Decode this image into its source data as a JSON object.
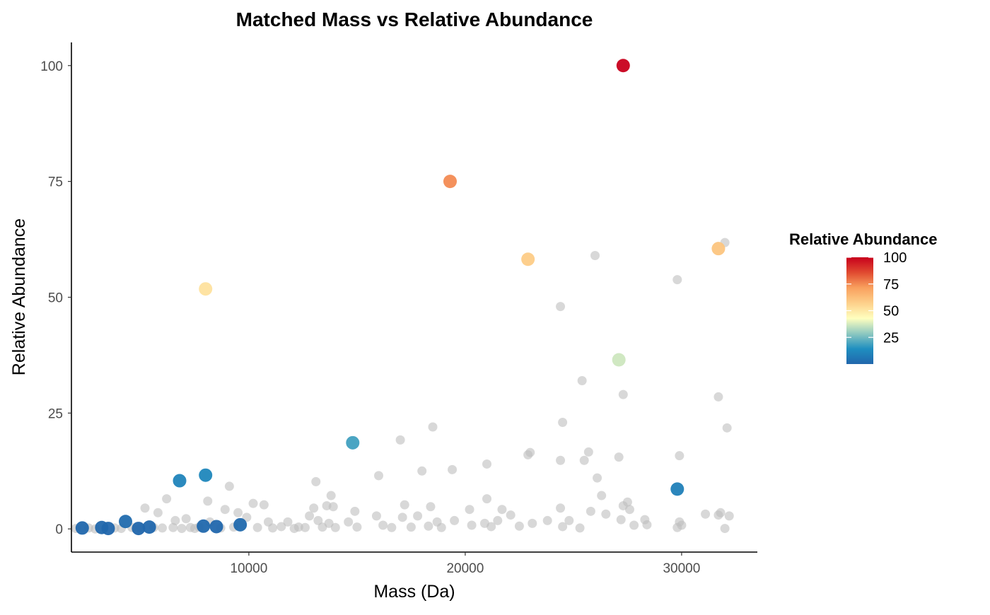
{
  "chart_data": {
    "type": "scatter",
    "title": "Matched Mass vs Relative Abundance",
    "xlabel": "Mass (Da)",
    "ylabel": "Relative Abundance",
    "xlim": [
      1800,
      33500
    ],
    "ylim": [
      -5,
      105
    ],
    "x_ticks": [
      10000,
      20000,
      30000
    ],
    "x_tick_labels": [
      "10000",
      "20000",
      "30000"
    ],
    "y_ticks": [
      0,
      25,
      50,
      75,
      100
    ],
    "y_tick_labels": [
      "0",
      "25",
      "50",
      "75",
      "100"
    ],
    "grid": false,
    "legend": {
      "title": "Relative Abundance",
      "placement": "right",
      "type": "colorbar",
      "range": [
        0,
        100
      ],
      "ticks": [
        25,
        50,
        75,
        100
      ],
      "tick_labels": [
        "25",
        "50",
        "75",
        "100"
      ],
      "colors": [
        "#2166AC",
        "#1F8FC0",
        "#8EC8C0",
        "#FFFFBF",
        "#FDD08A",
        "#F9A05E",
        "#E04A30",
        "#C8001C"
      ]
    },
    "series": [
      {
        "role": "matched",
        "colored_by": "Relative Abundance",
        "points": [
          {
            "x": 2300,
            "y": 0.2
          },
          {
            "x": 3200,
            "y": 0.3
          },
          {
            "x": 3500,
            "y": 0.1
          },
          {
            "x": 4300,
            "y": 1.6
          },
          {
            "x": 4900,
            "y": 0.1
          },
          {
            "x": 5400,
            "y": 0.4
          },
          {
            "x": 6800,
            "y": 10.4
          },
          {
            "x": 7900,
            "y": 0.6
          },
          {
            "x": 8000,
            "y": 11.6
          },
          {
            "x": 8000,
            "y": 51.8
          },
          {
            "x": 8500,
            "y": 0.5
          },
          {
            "x": 9600,
            "y": 0.9
          },
          {
            "x": 14800,
            "y": 18.6
          },
          {
            "x": 19300,
            "y": 75.0
          },
          {
            "x": 22900,
            "y": 58.2
          },
          {
            "x": 27100,
            "y": 36.5
          },
          {
            "x": 27300,
            "y": 100.0
          },
          {
            "x": 29800,
            "y": 8.6
          },
          {
            "x": 31700,
            "y": 60.5
          }
        ]
      },
      {
        "role": "unmatched",
        "color": "#BEBEBE",
        "points": [
          {
            "x": 2000,
            "y": 0.1
          },
          {
            "x": 2600,
            "y": 0.2
          },
          {
            "x": 2900,
            "y": 0.0
          },
          {
            "x": 3800,
            "y": 0.2
          },
          {
            "x": 4100,
            "y": 0.1
          },
          {
            "x": 4600,
            "y": 0.3
          },
          {
            "x": 5000,
            "y": 0.2
          },
          {
            "x": 5200,
            "y": 4.5
          },
          {
            "x": 5600,
            "y": 0.3
          },
          {
            "x": 5800,
            "y": 3.5
          },
          {
            "x": 6000,
            "y": 0.2
          },
          {
            "x": 6200,
            "y": 6.5
          },
          {
            "x": 6500,
            "y": 0.3
          },
          {
            "x": 6600,
            "y": 1.8
          },
          {
            "x": 6900,
            "y": 0.1
          },
          {
            "x": 7100,
            "y": 2.2
          },
          {
            "x": 7300,
            "y": 0.3
          },
          {
            "x": 7500,
            "y": 0.1
          },
          {
            "x": 7700,
            "y": 0.4
          },
          {
            "x": 8100,
            "y": 6.0
          },
          {
            "x": 8200,
            "y": 1.5
          },
          {
            "x": 8700,
            "y": 0.2
          },
          {
            "x": 8900,
            "y": 4.2
          },
          {
            "x": 9100,
            "y": 9.2
          },
          {
            "x": 9300,
            "y": 0.4
          },
          {
            "x": 9500,
            "y": 3.5
          },
          {
            "x": 9900,
            "y": 2.5
          },
          {
            "x": 10200,
            "y": 5.5
          },
          {
            "x": 10400,
            "y": 0.3
          },
          {
            "x": 10700,
            "y": 5.2
          },
          {
            "x": 10900,
            "y": 1.5
          },
          {
            "x": 11100,
            "y": 0.2
          },
          {
            "x": 11500,
            "y": 0.5
          },
          {
            "x": 11800,
            "y": 1.5
          },
          {
            "x": 12100,
            "y": 0.1
          },
          {
            "x": 12300,
            "y": 0.4
          },
          {
            "x": 12600,
            "y": 0.3
          },
          {
            "x": 12800,
            "y": 2.8
          },
          {
            "x": 13000,
            "y": 4.5
          },
          {
            "x": 13100,
            "y": 10.2
          },
          {
            "x": 13200,
            "y": 1.8
          },
          {
            "x": 13400,
            "y": 0.4
          },
          {
            "x": 13600,
            "y": 5.0
          },
          {
            "x": 13700,
            "y": 1.2
          },
          {
            "x": 13800,
            "y": 7.2
          },
          {
            "x": 13900,
            "y": 4.8
          },
          {
            "x": 14000,
            "y": 0.3
          },
          {
            "x": 14600,
            "y": 1.5
          },
          {
            "x": 14900,
            "y": 3.8
          },
          {
            "x": 15000,
            "y": 0.4
          },
          {
            "x": 15900,
            "y": 2.8
          },
          {
            "x": 16000,
            "y": 11.5
          },
          {
            "x": 16200,
            "y": 0.8
          },
          {
            "x": 16600,
            "y": 0.3
          },
          {
            "x": 17000,
            "y": 19.2
          },
          {
            "x": 17100,
            "y": 2.5
          },
          {
            "x": 17200,
            "y": 5.2
          },
          {
            "x": 17500,
            "y": 0.4
          },
          {
            "x": 17800,
            "y": 2.8
          },
          {
            "x": 18000,
            "y": 12.5
          },
          {
            "x": 18300,
            "y": 0.6
          },
          {
            "x": 18400,
            "y": 4.8
          },
          {
            "x": 18500,
            "y": 22.0
          },
          {
            "x": 18700,
            "y": 1.5
          },
          {
            "x": 18900,
            "y": 0.3
          },
          {
            "x": 19400,
            "y": 12.8
          },
          {
            "x": 19500,
            "y": 1.8
          },
          {
            "x": 20200,
            "y": 4.2
          },
          {
            "x": 20300,
            "y": 0.8
          },
          {
            "x": 20900,
            "y": 1.2
          },
          {
            "x": 21000,
            "y": 14.0
          },
          {
            "x": 21000,
            "y": 6.5
          },
          {
            "x": 21200,
            "y": 0.5
          },
          {
            "x": 21500,
            "y": 1.8
          },
          {
            "x": 21700,
            "y": 4.2
          },
          {
            "x": 22100,
            "y": 3.0
          },
          {
            "x": 22500,
            "y": 0.6
          },
          {
            "x": 22900,
            "y": 16.0
          },
          {
            "x": 23000,
            "y": 16.5
          },
          {
            "x": 23100,
            "y": 1.2
          },
          {
            "x": 23800,
            "y": 1.8
          },
          {
            "x": 24400,
            "y": 14.8
          },
          {
            "x": 24400,
            "y": 4.5
          },
          {
            "x": 24400,
            "y": 48.0
          },
          {
            "x": 24500,
            "y": 23.0
          },
          {
            "x": 24500,
            "y": 0.5
          },
          {
            "x": 24800,
            "y": 1.8
          },
          {
            "x": 25300,
            "y": 0.2
          },
          {
            "x": 25400,
            "y": 32.0
          },
          {
            "x": 25500,
            "y": 14.8
          },
          {
            "x": 25700,
            "y": 16.6
          },
          {
            "x": 25800,
            "y": 3.8
          },
          {
            "x": 26000,
            "y": 59.0
          },
          {
            "x": 26100,
            "y": 11.0
          },
          {
            "x": 26300,
            "y": 7.2
          },
          {
            "x": 26500,
            "y": 3.2
          },
          {
            "x": 27100,
            "y": 15.5
          },
          {
            "x": 27200,
            "y": 2.0
          },
          {
            "x": 27300,
            "y": 29.0
          },
          {
            "x": 27300,
            "y": 5.0
          },
          {
            "x": 27500,
            "y": 5.8
          },
          {
            "x": 27600,
            "y": 4.2
          },
          {
            "x": 27800,
            "y": 0.8
          },
          {
            "x": 28300,
            "y": 2.0
          },
          {
            "x": 28400,
            "y": 0.9
          },
          {
            "x": 29800,
            "y": 53.8
          },
          {
            "x": 29800,
            "y": 0.3
          },
          {
            "x": 29900,
            "y": 15.8
          },
          {
            "x": 29900,
            "y": 1.5
          },
          {
            "x": 30000,
            "y": 0.8
          },
          {
            "x": 31100,
            "y": 3.2
          },
          {
            "x": 31700,
            "y": 28.5
          },
          {
            "x": 31700,
            "y": 3.0
          },
          {
            "x": 31800,
            "y": 3.5
          },
          {
            "x": 32000,
            "y": 61.8
          },
          {
            "x": 32000,
            "y": 0.1
          },
          {
            "x": 32100,
            "y": 21.8
          },
          {
            "x": 32200,
            "y": 2.8
          }
        ]
      }
    ]
  }
}
